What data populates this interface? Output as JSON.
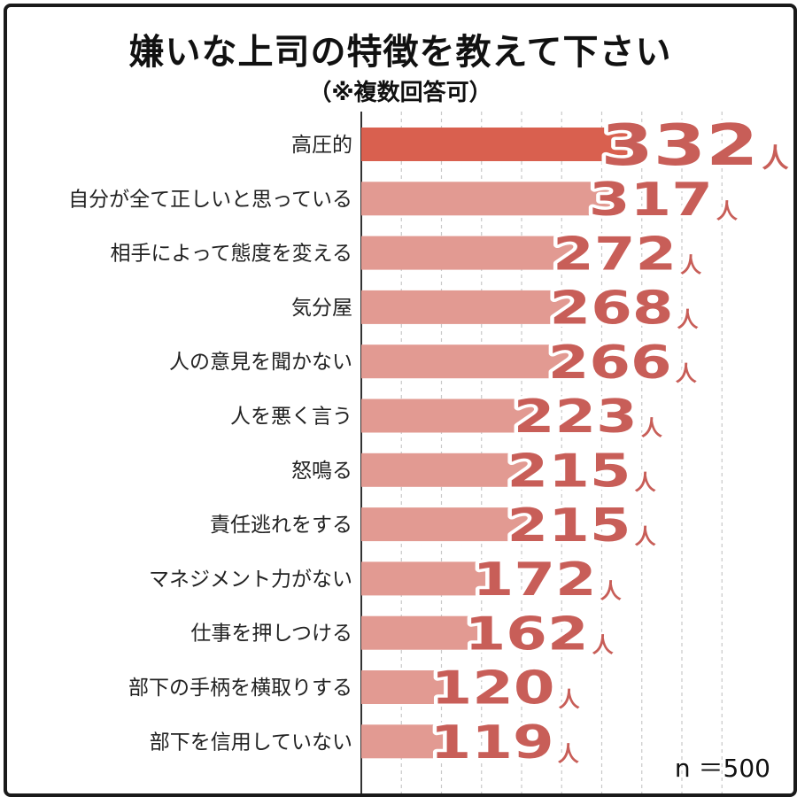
{
  "chart_data": {
    "type": "bar",
    "orientation": "horizontal",
    "title": "嫌いな上司の特徴を教えて下さい",
    "subtitle": "（※複数回答可）",
    "categories": [
      "高圧的",
      "自分が全て正しいと思っている",
      "相手によって態度を変える",
      "気分屋",
      "人の意見を聞かない",
      "人を悪く言う",
      "怒鳴る",
      "責任逃れをする",
      "マネジメント力がない",
      "仕事を押しつける",
      "部下の手柄を横取りする",
      "部下を信用していない"
    ],
    "values": [
      332,
      317,
      272,
      268,
      266,
      223,
      215,
      215,
      172,
      162,
      120,
      119
    ],
    "unit": "人",
    "xlim": [
      0,
      500
    ],
    "grid": true,
    "highlight_color": "#d9604f",
    "bar_color": "#e29a92",
    "label_color": "#c85e58",
    "note": "n ＝500"
  }
}
